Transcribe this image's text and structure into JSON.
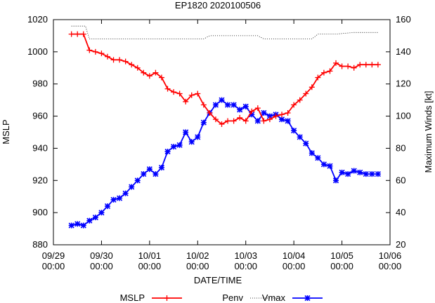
{
  "chart_data": {
    "type": "line",
    "title": "EP1820 2020100506",
    "xlabel": "DATE/TIME",
    "ylabel_left": "MSLP",
    "ylabel_right": "Maximum Winds [kt]",
    "x_axis": {
      "range_hours": [
        0,
        168
      ],
      "tick_hours": [
        0,
        24,
        48,
        72,
        96,
        120,
        144,
        168
      ],
      "tick_labels": [
        [
          "09/29",
          "00:00"
        ],
        [
          "09/30",
          "00:00"
        ],
        [
          "10/01",
          "00:00"
        ],
        [
          "10/02",
          "00:00"
        ],
        [
          "10/03",
          "00:00"
        ],
        [
          "10/04",
          "00:00"
        ],
        [
          "10/05",
          "00:00"
        ],
        [
          "10/06",
          "00:00"
        ]
      ]
    },
    "y_left": {
      "range": [
        880,
        1020
      ],
      "ticks": [
        880,
        900,
        920,
        940,
        960,
        980,
        1000,
        1020
      ]
    },
    "y_right": {
      "range": [
        20,
        160
      ],
      "ticks": [
        20,
        40,
        60,
        80,
        100,
        120,
        140,
        160
      ]
    },
    "grid": false,
    "legend_placement": "bottom",
    "legend": [
      "MSLP",
      "Penv",
      "Vmax"
    ],
    "series": [
      {
        "name": "MSLP",
        "axis": "left",
        "color": "#ff0000",
        "marker": "plus",
        "x_hours": [
          9,
          12,
          15,
          18,
          21,
          24,
          27,
          30,
          33,
          36,
          39,
          42,
          45,
          48,
          51,
          54,
          57,
          60,
          63,
          66,
          69,
          72,
          75,
          78,
          81,
          84,
          87,
          90,
          93,
          96,
          99,
          102,
          105,
          108,
          111,
          114,
          117,
          120,
          123,
          126,
          129,
          132,
          135,
          138,
          141,
          144,
          147,
          150,
          153,
          156,
          159,
          162
        ],
        "values": [
          1011,
          1011,
          1011,
          1001,
          1000,
          999,
          997,
          995,
          995,
          994,
          992,
          990,
          987,
          985,
          987,
          984,
          977,
          975,
          974,
          969,
          973,
          974,
          967,
          962,
          958,
          955,
          957,
          957,
          959,
          957,
          963,
          965,
          957,
          958,
          960,
          961,
          962,
          967,
          970,
          974,
          978,
          984,
          987,
          988,
          993,
          991,
          991,
          990,
          992,
          992,
          992,
          992
        ]
      },
      {
        "name": "Penv",
        "axis": "left",
        "color": "#000000",
        "style": "dotted",
        "x_hours": [
          9,
          16,
          18,
          48,
          54,
          57,
          75,
          78,
          81,
          90,
          93,
          102,
          105,
          110,
          126,
          129,
          132,
          135,
          141,
          150,
          153,
          156,
          159,
          162
        ],
        "values": [
          1016,
          1016,
          1008,
          1008,
          1008,
          1008,
          1008,
          1010,
          1010,
          1010,
          1010,
          1010,
          1008,
          1008,
          1008,
          1008,
          1011,
          1011,
          1011,
          1012,
          1012,
          1012,
          1012,
          1012
        ]
      },
      {
        "name": "Vmax",
        "axis": "right",
        "color": "#0000ff",
        "marker": "star",
        "x_hours": [
          9,
          12,
          15,
          18,
          21,
          24,
          27,
          30,
          33,
          36,
          39,
          42,
          45,
          48,
          51,
          54,
          57,
          60,
          63,
          66,
          69,
          72,
          75,
          78,
          81,
          84,
          87,
          90,
          93,
          96,
          99,
          102,
          105,
          108,
          111,
          114,
          117,
          120,
          123,
          126,
          129,
          132,
          135,
          138,
          141,
          144,
          147,
          150,
          153,
          156,
          159,
          162
        ],
        "values": [
          32,
          33,
          32,
          35,
          37,
          40,
          44,
          48,
          49,
          52,
          56,
          60,
          64,
          67,
          64,
          68,
          78,
          81,
          82,
          90,
          84,
          87,
          96,
          102,
          107,
          110,
          107,
          107,
          104,
          106,
          101,
          97,
          102,
          100,
          101,
          98,
          97,
          91,
          87,
          83,
          77,
          74,
          70,
          69,
          60,
          65,
          64,
          66,
          65,
          64,
          64,
          64
        ]
      }
    ]
  }
}
